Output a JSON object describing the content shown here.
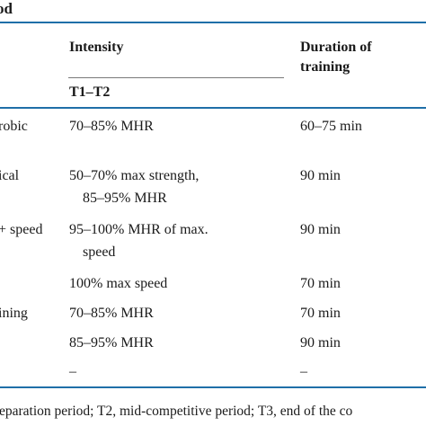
{
  "table": {
    "title_fragment": "od",
    "headers": {
      "intensity": "Intensity",
      "duration_line1": "Duration of",
      "duration_line2": "training",
      "period": "T1–T2"
    },
    "rows": [
      {
        "activity": "robic",
        "intensity": [
          "70–85% MHR"
        ],
        "duration": "60–75 min"
      },
      {
        "activity": "ical",
        "intensity": [
          "50–70% max strength,",
          "85–95% MHR"
        ],
        "duration": "90 min"
      },
      {
        "activity": "+ speed",
        "intensity": [
          "95–100% MHR of max.",
          "speed"
        ],
        "duration": "90 min"
      },
      {
        "activity": "",
        "intensity": [
          "100% max speed"
        ],
        "duration": "70 min"
      },
      {
        "activity": "ining",
        "intensity": [
          "70–85% MHR"
        ],
        "duration": "70 min"
      },
      {
        "activity": "",
        "intensity": [
          "85–95% MHR"
        ],
        "duration": "90 min"
      },
      {
        "activity": "",
        "intensity": [
          "–"
        ],
        "duration": "–"
      }
    ],
    "footnote": "eparation period; T2, mid-competitive period; T3, end of the co"
  },
  "colors": {
    "rule": "#1f6fa8",
    "text": "#1a1a1a"
  }
}
